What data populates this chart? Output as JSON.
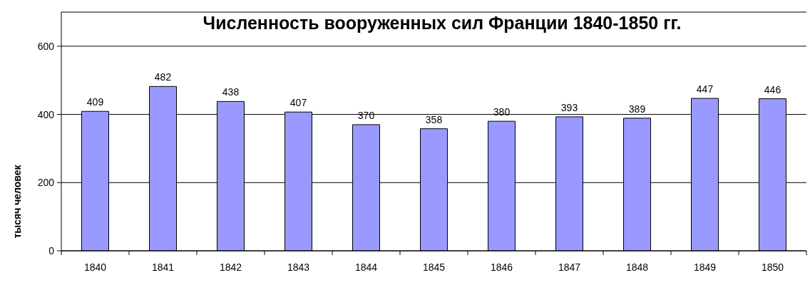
{
  "chart_data": {
    "type": "bar",
    "title": "Численность вооруженных сил Франции 1840-1850 гг.",
    "ylabel": "тысяч человек",
    "categories": [
      "1840",
      "1841",
      "1842",
      "1843",
      "1844",
      "1845",
      "1846",
      "1847",
      "1848",
      "1849",
      "1850"
    ],
    "values": [
      409,
      482,
      438,
      407,
      370,
      358,
      380,
      393,
      389,
      447,
      446
    ],
    "color": "#9999ff",
    "ylim": [
      0,
      700
    ],
    "yticks": [
      0,
      200,
      400,
      600
    ],
    "grid": "y",
    "data_labels": true
  }
}
